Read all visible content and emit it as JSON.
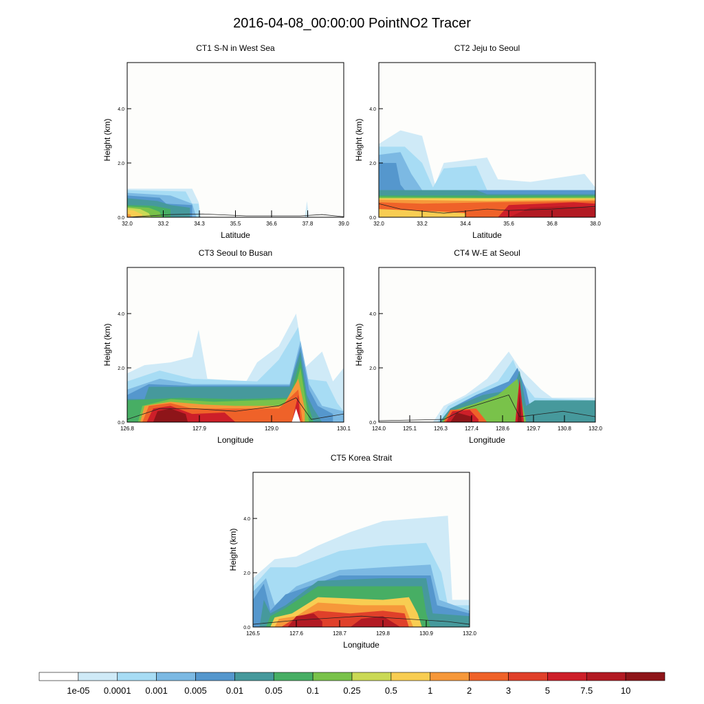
{
  "chart_data": {
    "type": "heatmap",
    "title": "2016-04-08_00:00:00 PointNO2 Tracer",
    "colorbar": {
      "levels": [
        "1e-05",
        "0.0001",
        "0.001",
        "0.005",
        "0.01",
        "0.05",
        "0.1",
        "0.25",
        "0.5",
        "1",
        "2",
        "3",
        "5",
        "7.5",
        "10"
      ],
      "colors": [
        "#ffffff",
        "#cfeaf7",
        "#a7dcf4",
        "#7cb9e3",
        "#5597cd",
        "#46999c",
        "#47ae64",
        "#79c24a",
        "#cad955",
        "#f8cd52",
        "#f6983a",
        "#ef6229",
        "#e0402a",
        "#cd1f29",
        "#b21a23",
        "#8e1519"
      ]
    },
    "panels": [
      {
        "title": "CT1 S-N in West Sea",
        "xlabel": "Latitude",
        "ylabel": "Height (km)",
        "xticks": [
          "32.0",
          "33.2",
          "34.3",
          "35.5",
          "36.6",
          "37.8",
          "39.0"
        ],
        "yticks": [
          "0.0",
          "2.0",
          "4.0"
        ],
        "ylim": [
          0,
          5.7
        ]
      },
      {
        "title": "CT2 Jeju to Seoul",
        "xlabel": "Latitude",
        "ylabel": "Height (km)",
        "xticks": [
          "32.0",
          "33.2",
          "34.4",
          "35.6",
          "36.8",
          "38.0"
        ],
        "yticks": [
          "0.0",
          "2.0",
          "4.0"
        ],
        "ylim": [
          0,
          5.7
        ]
      },
      {
        "title": "CT3 Seoul to Busan",
        "xlabel": "Longitude",
        "ylabel": "Height (km)",
        "xticks": [
          "126.8",
          "127.9",
          "129.0",
          "130.1"
        ],
        "yticks": [
          "0.0",
          "2.0",
          "4.0"
        ],
        "ylim": [
          0,
          5.7
        ]
      },
      {
        "title": "CT4 W-E at Seoul",
        "xlabel": "Longitude",
        "ylabel": "Height (km)",
        "xticks": [
          "124.0",
          "125.1",
          "126.3",
          "127.4",
          "128.6",
          "129.7",
          "130.8",
          "132.0"
        ],
        "yticks": [
          "0.0",
          "2.0",
          "4.0"
        ],
        "ylim": [
          0,
          5.7
        ]
      },
      {
        "title": "CT5 Korea Strait",
        "xlabel": "Longitude",
        "ylabel": "Height (km)",
        "xticks": [
          "126.5",
          "127.6",
          "128.7",
          "129.8",
          "130.9",
          "132.0"
        ],
        "yticks": [
          "0.0",
          "2.0",
          "4.0"
        ],
        "ylim": [
          0,
          5.7
        ]
      }
    ]
  }
}
